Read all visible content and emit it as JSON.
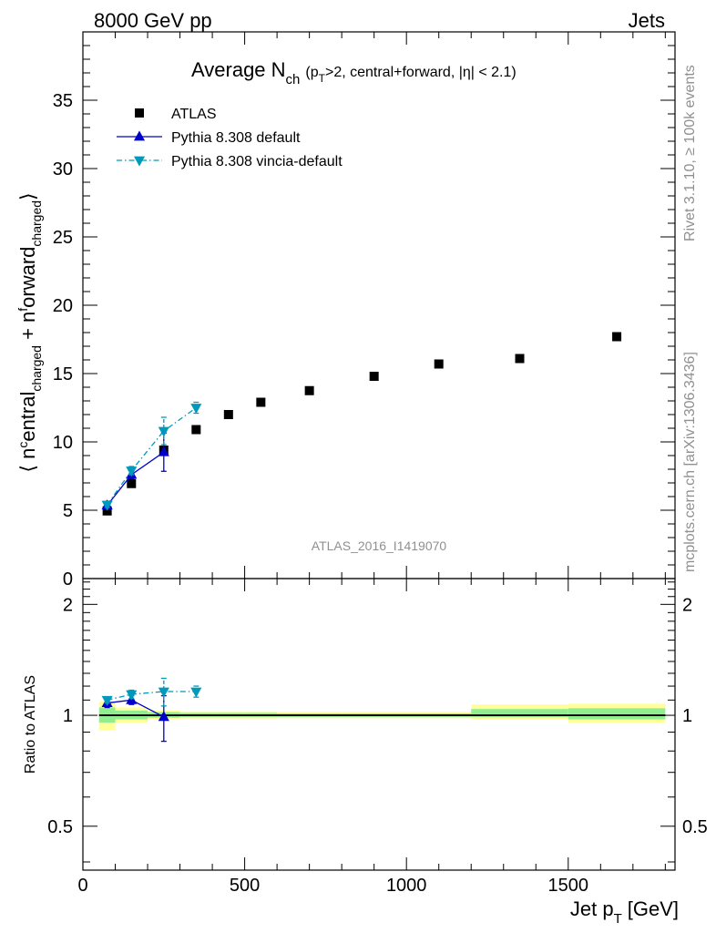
{
  "header": {
    "left": "8000 GeV pp",
    "right": "Jets"
  },
  "side_labels": {
    "rivet": "Rivet 3.1.10, ≥ 100k events",
    "mcplots": "mcplots.cern.ch [arXiv:1306.3436]"
  },
  "watermark": "ATLAS_2016_I1419070",
  "colors": {
    "atlas": "#000000",
    "pythia_default": "#0000cc",
    "pythia_vincia": "#0099bb",
    "band_inner": "#90ee90",
    "band_outer": "#ffff99"
  },
  "chart_data": [
    {
      "type": "scatter",
      "panel": "main",
      "title": "Average N",
      "title_sub": "ch",
      "title_rest": "(p",
      "title_rest_sub": "T",
      "title_rest2": ">2, central+forward, |η| < 2.1)",
      "ylabel": "⟨ n^central_charged + n^forward_charged ⟩",
      "xlim": [
        0,
        1830
      ],
      "ylim": [
        0,
        40
      ],
      "yticks": [
        0,
        5,
        10,
        15,
        20,
        25,
        30,
        35
      ],
      "legend_position": "top-left",
      "series": [
        {
          "name": "ATLAS",
          "marker": "square",
          "x": [
            75,
            150,
            250,
            350,
            450,
            550,
            700,
            900,
            1100,
            1350,
            1650
          ],
          "y": [
            4.95,
            6.95,
            9.4,
            10.9,
            12.0,
            12.9,
            13.75,
            14.8,
            15.7,
            16.1,
            17.7
          ]
        },
        {
          "name": "Pythia 8.308 default",
          "marker": "triangle-up",
          "line": "solid",
          "x": [
            75,
            150,
            250
          ],
          "y": [
            5.35,
            7.6,
            9.25
          ],
          "yerr": [
            0.3,
            0.3,
            1.4
          ]
        },
        {
          "name": "Pythia 8.308 vincia-default",
          "marker": "triangle-down",
          "line": "dashdot",
          "x": [
            75,
            150,
            250,
            350
          ],
          "y": [
            5.4,
            7.9,
            10.8,
            12.5
          ],
          "yerr": [
            0.2,
            0.3,
            1.0,
            0.4
          ]
        }
      ]
    },
    {
      "type": "scatter",
      "panel": "ratio",
      "ylabel": "Ratio to ATLAS",
      "xlabel": "Jet p_T [GeV]",
      "xlabel_main": "Jet p",
      "xlabel_sub": "T",
      "xlabel_unit": "[GeV]",
      "xlim": [
        0,
        1830
      ],
      "ylim": [
        0.38,
        2.35
      ],
      "xticks": [
        0,
        500,
        1000,
        1500
      ],
      "yticks": [
        0.5,
        1,
        2
      ],
      "reference_line": 1.0,
      "bands": [
        {
          "x0": 50,
          "x1": 100,
          "inner": [
            0.955,
            1.05
          ],
          "outer": [
            0.91,
            1.09
          ]
        },
        {
          "x0": 100,
          "x1": 200,
          "inner": [
            0.975,
            1.03
          ],
          "outer": [
            0.955,
            1.05
          ]
        },
        {
          "x0": 200,
          "x1": 300,
          "inner": [
            0.985,
            1.02
          ],
          "outer": [
            0.975,
            1.03
          ]
        },
        {
          "x0": 300,
          "x1": 400,
          "inner": [
            0.99,
            1.015
          ],
          "outer": [
            0.98,
            1.025
          ]
        },
        {
          "x0": 400,
          "x1": 500,
          "inner": [
            0.99,
            1.015
          ],
          "outer": [
            0.98,
            1.025
          ]
        },
        {
          "x0": 500,
          "x1": 600,
          "inner": [
            0.99,
            1.015
          ],
          "outer": [
            0.98,
            1.025
          ]
        },
        {
          "x0": 600,
          "x1": 800,
          "inner": [
            0.99,
            1.012
          ],
          "outer": [
            0.982,
            1.022
          ]
        },
        {
          "x0": 800,
          "x1": 1000,
          "inner": [
            0.99,
            1.012
          ],
          "outer": [
            0.982,
            1.022
          ]
        },
        {
          "x0": 1000,
          "x1": 1200,
          "inner": [
            0.99,
            1.012
          ],
          "outer": [
            0.982,
            1.022
          ]
        },
        {
          "x0": 1200,
          "x1": 1500,
          "inner": [
            0.99,
            1.04
          ],
          "outer": [
            0.975,
            1.07
          ]
        },
        {
          "x0": 1500,
          "x1": 1800,
          "inner": [
            0.975,
            1.045
          ],
          "outer": [
            0.955,
            1.075
          ]
        }
      ],
      "series": [
        {
          "name": "Pythia 8.308 default",
          "marker": "triangle-up",
          "line": "solid",
          "x": [
            75,
            150,
            250
          ],
          "y": [
            1.08,
            1.1,
            0.99
          ],
          "yerr": [
            0.03,
            0.03,
            0.14
          ]
        },
        {
          "name": "Pythia 8.308 vincia-default",
          "marker": "triangle-down",
          "line": "dashdot",
          "x": [
            75,
            150,
            250,
            350
          ],
          "y": [
            1.1,
            1.14,
            1.16,
            1.16
          ],
          "yerr": [
            0.02,
            0.03,
            0.1,
            0.04
          ]
        }
      ]
    }
  ]
}
